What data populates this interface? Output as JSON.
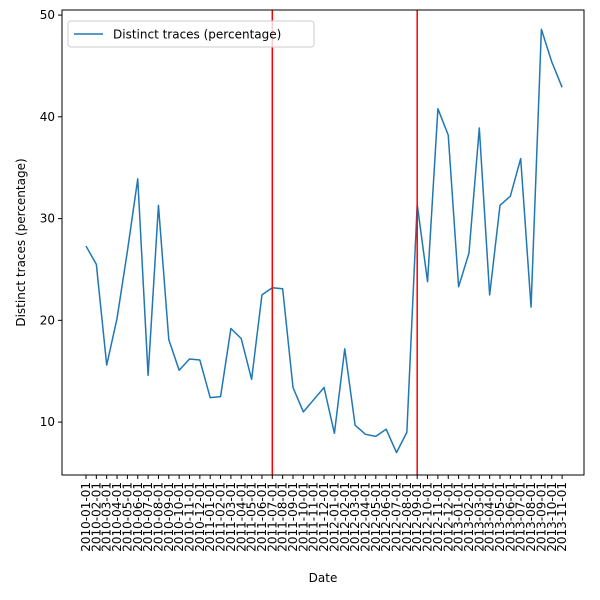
{
  "chart_data": {
    "type": "line",
    "title": "",
    "xlabel": "Date",
    "ylabel": "Distinct traces (percentage)",
    "ylim": [
      4.8,
      50.5
    ],
    "y_ticks": [
      10,
      20,
      30,
      40,
      50
    ],
    "grid": false,
    "legend_position": "top-left",
    "x": [
      "2010-01-01",
      "2010-02-01",
      "2010-03-01",
      "2010-04-01",
      "2010-05-01",
      "2010-06-01",
      "2010-07-01",
      "2010-08-01",
      "2010-09-01",
      "2010-10-01",
      "2010-11-01",
      "2010-12-01",
      "2011-01-01",
      "2011-02-01",
      "2011-03-01",
      "2011-04-01",
      "2011-05-01",
      "2011-06-01",
      "2011-07-01",
      "2011-08-01",
      "2011-09-01",
      "2011-10-01",
      "2011-11-01",
      "2011-12-01",
      "2012-01-01",
      "2012-02-01",
      "2012-03-01",
      "2012-04-01",
      "2012-05-01",
      "2012-06-01",
      "2012-07-01",
      "2012-08-01",
      "2012-09-01",
      "2012-10-01",
      "2012-11-01",
      "2012-12-01",
      "2013-01-01",
      "2013-02-01",
      "2013-03-01",
      "2013-04-01",
      "2013-05-01",
      "2013-06-01",
      "2013-07-01",
      "2013-08-01",
      "2013-09-01",
      "2013-10-01",
      "2013-11-01"
    ],
    "series": [
      {
        "name": "Distinct traces (percentage)",
        "color": "#1f77b4",
        "values": [
          27.3,
          25.5,
          15.6,
          20.2,
          26.8,
          33.9,
          14.6,
          31.3,
          18.1,
          15.1,
          16.2,
          16.1,
          12.4,
          12.5,
          19.2,
          18.2,
          14.2,
          22.5,
          23.2,
          23.1,
          13.4,
          11.0,
          12.2,
          13.4,
          8.9,
          17.2,
          9.7,
          8.8,
          8.6,
          9.3,
          7.0,
          9.0,
          31.4,
          23.8,
          40.8,
          38.2,
          23.3,
          26.6,
          38.9,
          22.5,
          31.3,
          32.2,
          35.9,
          21.3,
          48.6,
          45.4,
          42.9
        ]
      }
    ],
    "vertical_lines": [
      {
        "x": "2011-07-01",
        "color": "#ff0000"
      },
      {
        "x": "2012-09-01",
        "color": "#ff0000"
      }
    ]
  }
}
